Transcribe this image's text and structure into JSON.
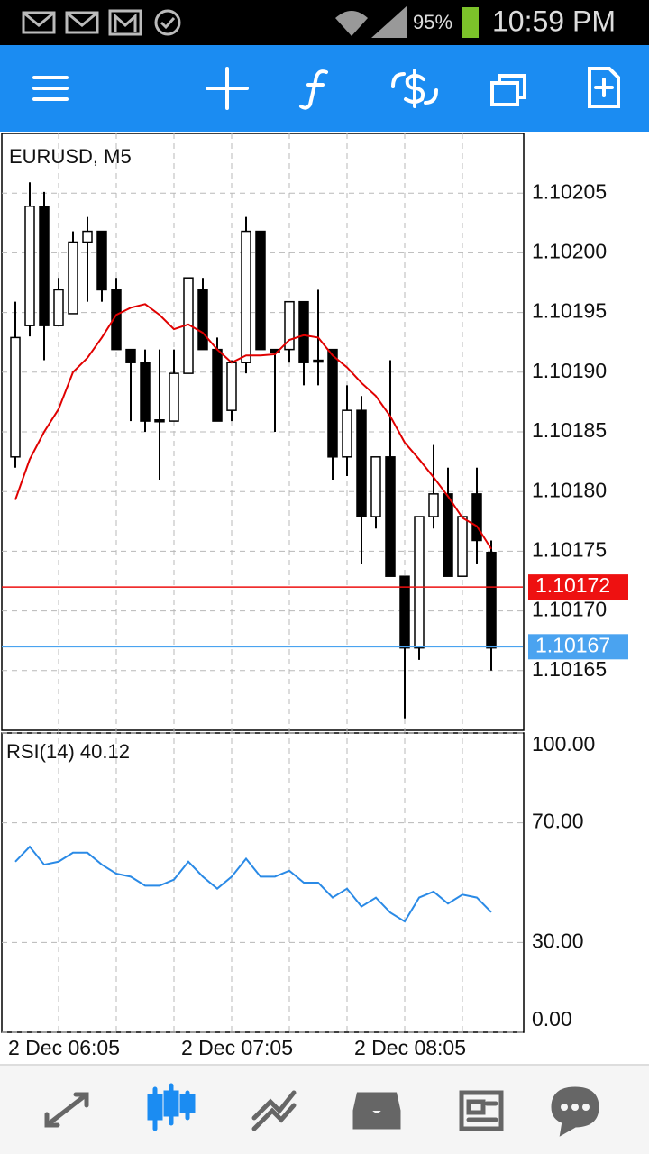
{
  "status_bar": {
    "battery": "95%",
    "time": "10:59 PM"
  },
  "chart_data": [
    {
      "type": "candlestick",
      "title": "EURUSD, M5",
      "categories": [
        null,
        null,
        null,
        "2 Dec 06:05",
        null,
        null,
        null,
        null,
        null,
        null,
        null,
        null,
        null,
        null,
        null,
        "2 Dec 07:05",
        null,
        null,
        null,
        null,
        null,
        null,
        null,
        null,
        null,
        null,
        null,
        "2 Dec 08:05",
        null,
        null,
        null,
        null,
        null,
        null
      ],
      "open": [
        1.101829,
        1.101939,
        1.102039,
        1.101939,
        1.101949,
        1.102009,
        1.102018,
        1.101969,
        1.101919,
        1.101908,
        1.10186,
        1.101859,
        1.101899,
        1.101969,
        1.101919,
        1.101868,
        1.101908,
        1.102018,
        1.101919,
        1.101919,
        1.101959,
        1.10191,
        1.101919,
        1.101829,
        1.101868,
        1.101779,
        1.101829,
        1.101729,
        1.101669,
        1.101779,
        1.101798,
        1.101729,
        1.101798,
        1.101749
      ],
      "high": [
        1.101959,
        1.102059,
        1.102051,
        1.101979,
        1.102018,
        1.10203,
        1.102018,
        1.101979,
        1.101919,
        1.101919,
        1.101919,
        1.101919,
        1.101979,
        1.101979,
        1.101929,
        1.10191,
        1.10203,
        1.102018,
        1.101919,
        1.101959,
        1.101959,
        1.101969,
        1.101919,
        1.101889,
        1.10188,
        1.101829,
        1.10191,
        1.101729,
        1.101779,
        1.101839,
        1.10182,
        1.101779,
        1.10182,
        1.101759
      ],
      "low": [
        1.10182,
        1.10193,
        1.10191,
        1.101939,
        1.101949,
        1.101959,
        1.101959,
        1.101919,
        1.101859,
        1.10185,
        1.10181,
        1.101859,
        1.101899,
        1.101919,
        1.101859,
        1.101859,
        1.101899,
        1.101919,
        1.10185,
        1.101908,
        1.101889,
        1.101889,
        1.10181,
        1.101813,
        1.101739,
        1.101769,
        1.101729,
        1.10161,
        1.101659,
        1.101769,
        1.101729,
        1.101729,
        1.101739,
        1.10165
      ],
      "close": [
        1.101929,
        1.102039,
        1.101939,
        1.101969,
        1.102009,
        1.102018,
        1.101969,
        1.101919,
        1.101908,
        1.101859,
        1.101859,
        1.101899,
        1.101979,
        1.101919,
        1.101859,
        1.101908,
        1.102018,
        1.101919,
        1.101917,
        1.101959,
        1.101908,
        1.101909,
        1.101829,
        1.101868,
        1.101779,
        1.101829,
        1.101729,
        1.101669,
        1.101779,
        1.101798,
        1.101729,
        1.101779,
        1.101759,
        1.101669
      ],
      "up_color": "#ffffff",
      "down_color": "#000000",
      "moving_average": {
        "color": "#e00000",
        "values": [
          1.101793,
          1.101827,
          1.10185,
          1.101869,
          1.1019,
          1.101912,
          1.101929,
          1.101948,
          1.101954,
          1.101957,
          1.101948,
          1.101936,
          1.10194,
          1.101933,
          1.101919,
          1.101908,
          1.101914,
          1.101914,
          1.101915,
          1.101927,
          1.101931,
          1.101929,
          1.101914,
          1.101904,
          1.101891,
          1.10188,
          1.101863,
          1.101841,
          1.101827,
          1.101812,
          1.101796,
          1.101778,
          1.101771,
          1.101752
        ]
      },
      "price_lines": [
        {
          "value": 1.10172,
          "color": "#ee1111"
        },
        {
          "value": 1.10167,
          "color": "#4aa3f0"
        }
      ],
      "ylim": [
        1.1016,
        1.1021
      ],
      "yticks": [
        1.10165,
        {
          "value": 1.1017,
          "label": "1.10170"
        },
        1.10175,
        {
          "value": 1.1018,
          "label": "1.10180"
        },
        1.10185,
        {
          "value": 1.1019,
          "label": "1.10190"
        },
        1.10195,
        {
          "value": 1.102,
          "label": "1.10200"
        },
        1.10205
      ],
      "grid": true
    },
    {
      "type": "line",
      "title": "RSI(14) 40.12",
      "color": "#2a8ae6",
      "values": [
        57,
        62,
        56,
        57,
        60,
        60,
        56,
        53,
        52,
        49,
        49,
        51,
        57,
        52,
        48,
        52,
        58,
        52,
        52,
        54,
        50,
        50,
        45,
        48,
        42,
        45,
        40,
        37,
        45,
        47,
        43,
        46,
        45,
        40.12
      ],
      "ylim": [
        0,
        100
      ],
      "yticks": [
        {
          "value": 0,
          "label": "0.00"
        },
        {
          "value": 30,
          "label": "30.00"
        },
        {
          "value": 70,
          "label": "70.00"
        },
        {
          "value": 100,
          "label": "100.00"
        }
      ],
      "grid": true
    }
  ]
}
